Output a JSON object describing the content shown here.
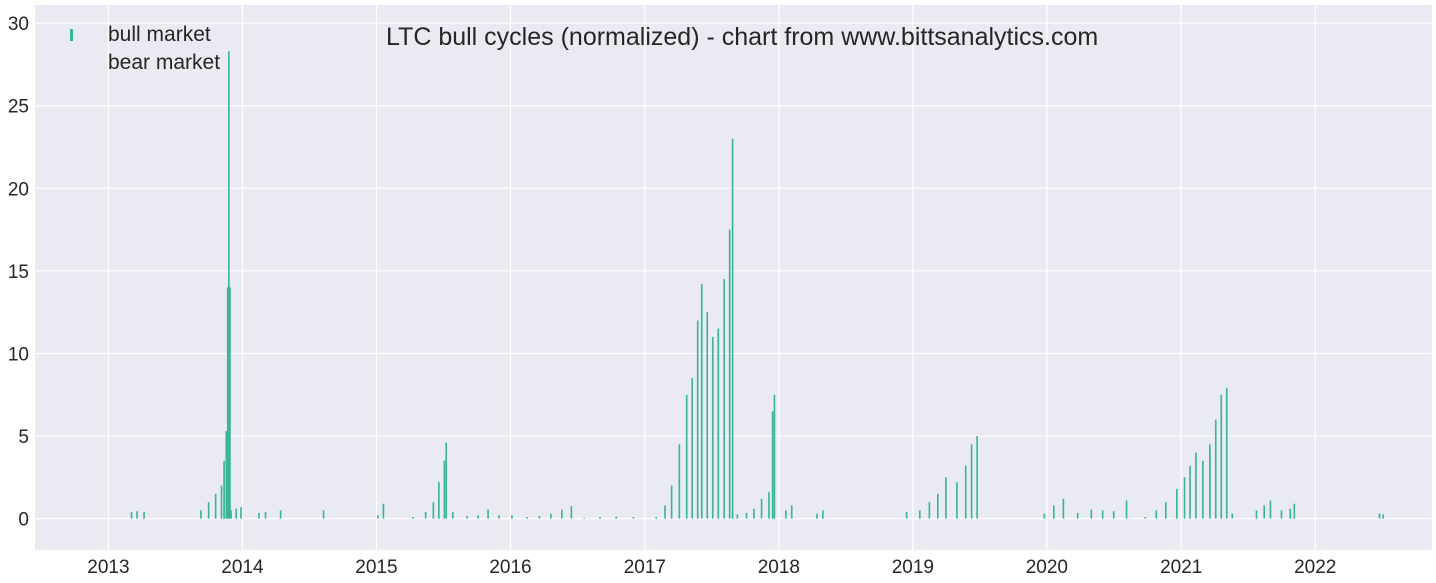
{
  "chart_data": {
    "type": "bar",
    "title": "LTC bull cycles (normalized)  - chart from www.bittsanalytics.com",
    "xlabel": "",
    "ylabel": "",
    "xlim": [
      "2012-06-15",
      "2022-11-15"
    ],
    "ylim": [
      -1.9,
      31.1
    ],
    "grid": true,
    "legend_position": "top-left",
    "background_color": "#eaeaf2",
    "grid_color": "#ffffff",
    "x_tick_labels": [
      "2013",
      "2014",
      "2015",
      "2016",
      "2017",
      "2018",
      "2019",
      "2020",
      "2021",
      "2022"
    ],
    "y_tick_labels": [
      "0",
      "5",
      "10",
      "15",
      "20",
      "25",
      "30"
    ],
    "y_ticks": [
      0,
      5,
      10,
      15,
      20,
      25,
      30
    ],
    "series": [
      {
        "name": "bull market",
        "color": "#3bb597",
        "points": [
          [
            "2013-03-05",
            0.4
          ],
          [
            "2013-03-20",
            0.45
          ],
          [
            "2013-04-08",
            0.4
          ],
          [
            "2013-09-10",
            0.5
          ],
          [
            "2013-10-01",
            1.0
          ],
          [
            "2013-10-20",
            1.5
          ],
          [
            "2013-11-05",
            2.0
          ],
          [
            "2013-11-12",
            3.5
          ],
          [
            "2013-11-18",
            5.3
          ],
          [
            "2013-11-22",
            14.0
          ],
          [
            "2013-11-25",
            28.3
          ],
          [
            "2013-11-28",
            14.0
          ],
          [
            "2013-12-01",
            0.5
          ],
          [
            "2013-12-15",
            0.6
          ],
          [
            "2013-12-28",
            0.7
          ],
          [
            "2014-02-15",
            0.35
          ],
          [
            "2014-03-05",
            0.4
          ],
          [
            "2014-04-15",
            0.5
          ],
          [
            "2014-08-10",
            0.5
          ],
          [
            "2015-01-05",
            0.2
          ],
          [
            "2015-01-20",
            0.9
          ],
          [
            "2015-04-10",
            0.1
          ],
          [
            "2015-05-15",
            0.4
          ],
          [
            "2015-06-05",
            1.0
          ],
          [
            "2015-06-20",
            2.2
          ],
          [
            "2015-07-05",
            3.5
          ],
          [
            "2015-07-10",
            4.6
          ],
          [
            "2015-07-28",
            0.4
          ],
          [
            "2015-09-05",
            0.15
          ],
          [
            "2015-10-05",
            0.2
          ],
          [
            "2015-11-01",
            0.55
          ],
          [
            "2015-12-01",
            0.2
          ],
          [
            "2016-01-05",
            0.2
          ],
          [
            "2016-02-15",
            0.1
          ],
          [
            "2016-03-20",
            0.15
          ],
          [
            "2016-04-20",
            0.3
          ],
          [
            "2016-05-20",
            0.55
          ],
          [
            "2016-06-15",
            0.75
          ],
          [
            "2016-07-20",
            0.05
          ],
          [
            "2016-09-01",
            0.1
          ],
          [
            "2016-10-15",
            0.12
          ],
          [
            "2016-12-01",
            0.1
          ],
          [
            "2017-02-01",
            0.1
          ],
          [
            "2017-02-25",
            0.8
          ],
          [
            "2017-03-15",
            2.0
          ],
          [
            "2017-04-05",
            4.5
          ],
          [
            "2017-04-25",
            7.5
          ],
          [
            "2017-05-10",
            8.5
          ],
          [
            "2017-05-25",
            12.0
          ],
          [
            "2017-06-05",
            14.2
          ],
          [
            "2017-06-20",
            12.5
          ],
          [
            "2017-07-05",
            11.0
          ],
          [
            "2017-07-20",
            11.5
          ],
          [
            "2017-08-05",
            14.5
          ],
          [
            "2017-08-20",
            17.5
          ],
          [
            "2017-08-28",
            23.0
          ],
          [
            "2017-09-10",
            0.25
          ],
          [
            "2017-10-05",
            0.35
          ],
          [
            "2017-10-25",
            0.6
          ],
          [
            "2017-11-15",
            1.2
          ],
          [
            "2017-12-05",
            1.6
          ],
          [
            "2017-12-15",
            6.5
          ],
          [
            "2017-12-20",
            7.5
          ],
          [
            "2018-01-20",
            0.5
          ],
          [
            "2018-02-05",
            0.8
          ],
          [
            "2018-04-15",
            0.3
          ],
          [
            "2018-05-01",
            0.5
          ],
          [
            "2018-12-15",
            0.4
          ],
          [
            "2019-01-20",
            0.5
          ],
          [
            "2019-02-15",
            1.0
          ],
          [
            "2019-03-10",
            1.5
          ],
          [
            "2019-04-01",
            2.5
          ],
          [
            "2019-05-01",
            2.2
          ],
          [
            "2019-05-25",
            3.2
          ],
          [
            "2019-06-10",
            4.5
          ],
          [
            "2019-06-25",
            5.0
          ],
          [
            "2019-12-25",
            0.3
          ],
          [
            "2020-01-20",
            0.8
          ],
          [
            "2020-02-15",
            1.2
          ],
          [
            "2020-03-25",
            0.35
          ],
          [
            "2020-05-01",
            0.55
          ],
          [
            "2020-06-01",
            0.5
          ],
          [
            "2020-07-01",
            0.45
          ],
          [
            "2020-08-05",
            1.1
          ],
          [
            "2020-09-25",
            0.1
          ],
          [
            "2020-10-25",
            0.5
          ],
          [
            "2020-11-20",
            1.0
          ],
          [
            "2020-12-20",
            1.8
          ],
          [
            "2021-01-10",
            2.5
          ],
          [
            "2021-01-25",
            3.2
          ],
          [
            "2021-02-10",
            4.0
          ],
          [
            "2021-03-01",
            3.5
          ],
          [
            "2021-03-20",
            4.5
          ],
          [
            "2021-04-05",
            6.0
          ],
          [
            "2021-04-20",
            7.5
          ],
          [
            "2021-05-05",
            7.9
          ],
          [
            "2021-05-20",
            0.3
          ],
          [
            "2021-07-25",
            0.5
          ],
          [
            "2021-08-15",
            0.8
          ],
          [
            "2021-09-01",
            1.1
          ],
          [
            "2021-10-01",
            0.5
          ],
          [
            "2021-10-25",
            0.6
          ],
          [
            "2021-11-05",
            0.9
          ],
          [
            "2022-06-25",
            0.3
          ],
          [
            "2022-07-05",
            0.25
          ]
        ]
      },
      {
        "name": "bear market",
        "color": "#eaeaf2",
        "points": []
      }
    ]
  }
}
